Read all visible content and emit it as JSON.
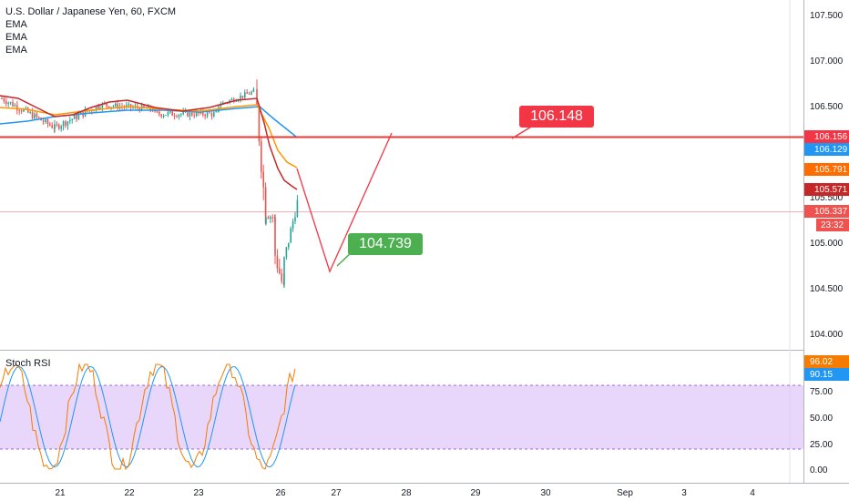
{
  "header": {
    "title": "U.S. Dollar / Japanese Yen, 60, FXCM",
    "indicators": [
      "EMA",
      "EMA",
      "EMA"
    ]
  },
  "oscillator": {
    "title": "Stoch RSI",
    "k_value": "96.02",
    "d_value": "90.15",
    "k_color": "#f57c00",
    "d_color": "#2196f3",
    "ticks": [
      "75.00",
      "50.00",
      "25.00",
      "0.00"
    ]
  },
  "price_axis": {
    "ticks": [
      "107.500",
      "107.000",
      "106.500",
      "105.500",
      "105.000",
      "104.500",
      "104.000"
    ]
  },
  "price_labels": [
    {
      "value": "106.156",
      "color": "#f23645"
    },
    {
      "value": "106.129",
      "color": "#2196f3"
    },
    {
      "value": "105.791",
      "color": "#ff6d00"
    },
    {
      "value": "105.571",
      "color": "#c62828"
    },
    {
      "value": "105.337",
      "color": "#ef5350"
    },
    {
      "value": "23:32",
      "color": "#ef5350"
    }
  ],
  "time_axis": {
    "labels": [
      "21",
      "22",
      "23",
      "26",
      "27",
      "28",
      "29",
      "30",
      "Sep",
      "3",
      "4"
    ]
  },
  "annotations": {
    "target_high": "106.148",
    "target_low": "104.739",
    "high_color": "#f23645",
    "low_color": "#4caf50"
  },
  "chart_data": {
    "type": "line",
    "symbol": "USDJPY",
    "timeframe": "60",
    "y_range": [
      103.8,
      107.6
    ],
    "horizontal_level": 106.156,
    "current_price": 105.337,
    "price_path": {
      "x": [
        "Aug 20",
        "Aug 21",
        "Aug 22",
        "Aug 23",
        "Aug 23 late",
        "Aug 26 00:00",
        "Aug 26 02:00",
        "Aug 26 06:00",
        "Aug 26 10:00",
        "Aug 26 14:00",
        "Aug 26 23:00"
      ],
      "y": [
        106.6,
        106.35,
        106.55,
        106.45,
        106.7,
        106.5,
        105.3,
        104.48,
        105.1,
        105.55,
        105.34
      ]
    },
    "series": [
      {
        "name": "EMA",
        "values": [
          106.5,
          106.45,
          106.5,
          106.48,
          106.5,
          106.45,
          106.0,
          105.8,
          105.79
        ]
      },
      {
        "name": "EMA",
        "values": [
          106.35,
          106.36,
          106.42,
          106.43,
          106.48,
          106.42,
          106.2,
          106.13
        ]
      },
      {
        "name": "EMA",
        "values": [
          106.6,
          106.4,
          106.55,
          106.45,
          106.55,
          106.35,
          105.5,
          105.57
        ]
      }
    ],
    "projection": {
      "x": [
        "Aug 26 15:00",
        "Aug 26 21:00",
        "Aug 27 06:00",
        "Aug 27 21:00"
      ],
      "y": [
        105.8,
        104.68,
        105.1,
        106.2
      ]
    },
    "stoch_rsi": {
      "upper_band": 80,
      "lower_band": 20,
      "k_last": 96.02,
      "d_last": 90.15
    }
  }
}
